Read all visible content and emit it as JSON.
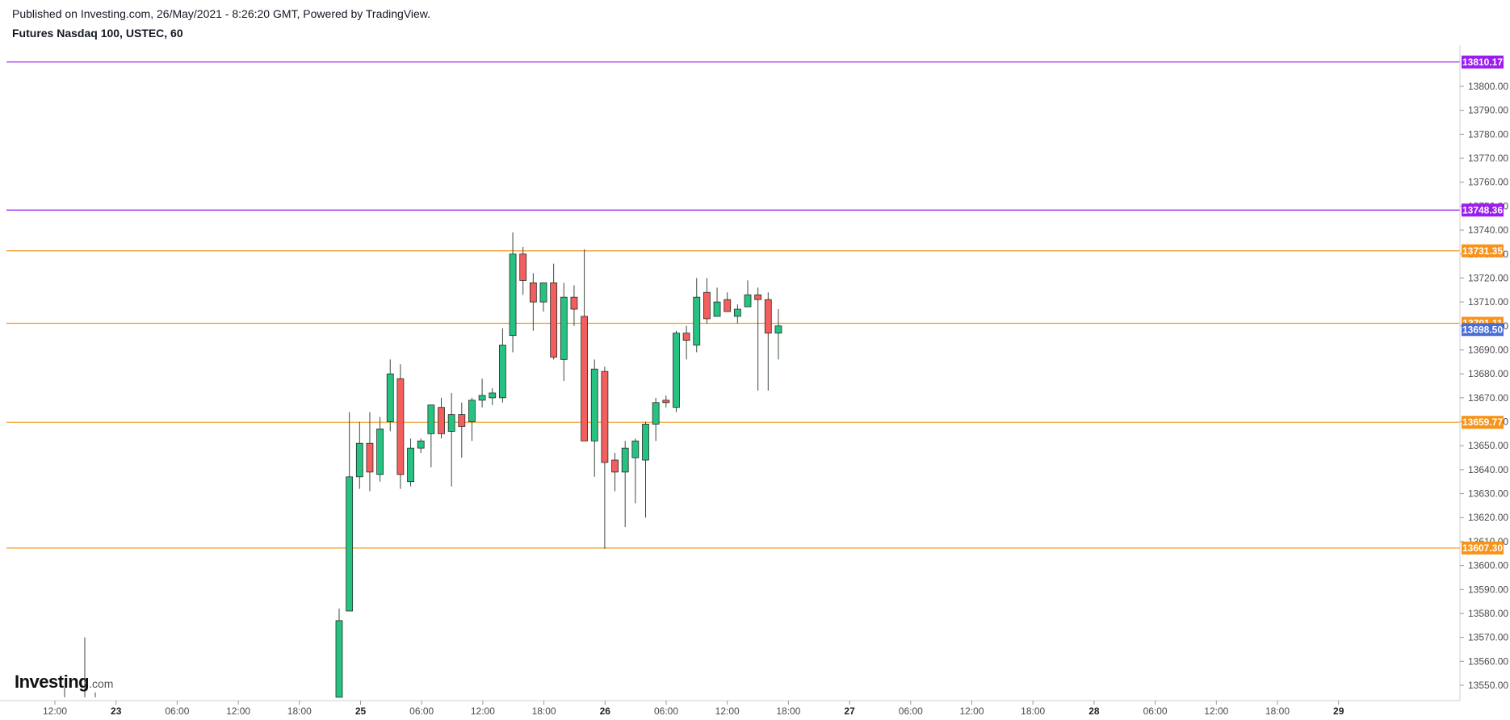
{
  "header": {
    "published": "Published on Investing.com, 26/May/2021 - 8:26:20 GMT, Powered by TradingView.",
    "symbol": "Futures Nasdaq 100, USTEC, 60"
  },
  "logo": {
    "brand": "Investing",
    "suffix": ".com"
  },
  "colors": {
    "up": "#26c281",
    "down": "#f25f5c",
    "wick": "#3c4a3c",
    "resistance_purple": "#9b1cf0",
    "level_orange": "#f7931a",
    "current_price": "#4a6ed4"
  },
  "chart_data": {
    "type": "candlestick",
    "title": "Futures Nasdaq 100, USTEC, 60",
    "ylim": [
      13545,
      13820
    ],
    "yticks": [
      13550,
      13560,
      13570,
      13580,
      13590,
      13600,
      13610,
      13620,
      13630,
      13640,
      13650,
      13660,
      13670,
      13680,
      13690,
      13700,
      13710,
      13720,
      13730,
      13740,
      13750,
      13760,
      13770,
      13780,
      13790,
      13800
    ],
    "xticks": [
      {
        "label": "12:00",
        "day": false
      },
      {
        "label": "23",
        "day": true
      },
      {
        "label": "06:00",
        "day": false
      },
      {
        "label": "12:00",
        "day": false
      },
      {
        "label": "18:00",
        "day": false
      },
      {
        "label": "25",
        "day": true
      },
      {
        "label": "06:00",
        "day": false
      },
      {
        "label": "12:00",
        "day": false
      },
      {
        "label": "18:00",
        "day": false
      },
      {
        "label": "26",
        "day": true
      },
      {
        "label": "06:00",
        "day": false
      },
      {
        "label": "12:00",
        "day": false
      },
      {
        "label": "18:00",
        "day": false
      },
      {
        "label": "27",
        "day": true
      },
      {
        "label": "06:00",
        "day": false
      },
      {
        "label": "12:00",
        "day": false
      },
      {
        "label": "18:00",
        "day": false
      },
      {
        "label": "28",
        "day": true
      },
      {
        "label": "06:00",
        "day": false
      },
      {
        "label": "12:00",
        "day": false
      },
      {
        "label": "18:00",
        "day": false
      },
      {
        "label": "29",
        "day": true
      }
    ],
    "levels": [
      {
        "label": "13810.17",
        "value": 13810.17,
        "kind": "resistance_purple"
      },
      {
        "label": "13748.36",
        "value": 13748.36,
        "kind": "resistance_purple"
      },
      {
        "label": "13731.35",
        "value": 13731.35,
        "kind": "level_orange"
      },
      {
        "label": "13701.11",
        "value": 13701.11,
        "kind": "level_orange"
      },
      {
        "label": "13659.77",
        "value": 13659.77,
        "kind": "level_orange"
      },
      {
        "label": "13607.30",
        "value": 13607.3,
        "kind": "level_orange"
      }
    ],
    "current_price": {
      "label": "13698.50",
      "value": 13698.5
    },
    "candles": [
      {
        "o": 13545,
        "h": 13582,
        "l": 13545,
        "c": 13577
      },
      {
        "o": 13581,
        "h": 13664,
        "l": 13581,
        "c": 13637
      },
      {
        "o": 13637,
        "h": 13660,
        "l": 13632,
        "c": 13651
      },
      {
        "o": 13651,
        "h": 13664,
        "l": 13631,
        "c": 13639
      },
      {
        "o": 13638,
        "h": 13662,
        "l": 13635,
        "c": 13657
      },
      {
        "o": 13660,
        "h": 13686,
        "l": 13656,
        "c": 13680
      },
      {
        "o": 13678,
        "h": 13684,
        "l": 13632,
        "c": 13638
      },
      {
        "o": 13635,
        "h": 13653,
        "l": 13633,
        "c": 13649
      },
      {
        "o": 13649,
        "h": 13653,
        "l": 13647,
        "c": 13652
      },
      {
        "o": 13655,
        "h": 13667,
        "l": 13641,
        "c": 13667
      },
      {
        "o": 13666,
        "h": 13670,
        "l": 13653,
        "c": 13655
      },
      {
        "o": 13656,
        "h": 13672,
        "l": 13633,
        "c": 13663
      },
      {
        "o": 13663,
        "h": 13668,
        "l": 13645,
        "c": 13658
      },
      {
        "o": 13660,
        "h": 13670,
        "l": 13652,
        "c": 13669
      },
      {
        "o": 13669,
        "h": 13678,
        "l": 13666,
        "c": 13671
      },
      {
        "o": 13670,
        "h": 13674,
        "l": 13667,
        "c": 13672
      },
      {
        "o": 13670,
        "h": 13699,
        "l": 13668,
        "c": 13692
      },
      {
        "o": 13696,
        "h": 13739,
        "l": 13689,
        "c": 13730
      },
      {
        "o": 13730,
        "h": 13733,
        "l": 13713,
        "c": 13719
      },
      {
        "o": 13718,
        "h": 13722,
        "l": 13698,
        "c": 13710
      },
      {
        "o": 13710,
        "h": 13718,
        "l": 13706,
        "c": 13718
      },
      {
        "o": 13718,
        "h": 13726,
        "l": 13686,
        "c": 13687
      },
      {
        "o": 13686,
        "h": 13718,
        "l": 13677,
        "c": 13712
      },
      {
        "o": 13712,
        "h": 13717,
        "l": 13700,
        "c": 13707
      },
      {
        "o": 13704,
        "h": 13732,
        "l": 13652,
        "c": 13652
      },
      {
        "o": 13652,
        "h": 13686,
        "l": 13637,
        "c": 13682
      },
      {
        "o": 13681,
        "h": 13683,
        "l": 13607,
        "c": 13643
      },
      {
        "o": 13644,
        "h": 13647,
        "l": 13631,
        "c": 13639
      },
      {
        "o": 13639,
        "h": 13652,
        "l": 13616,
        "c": 13649
      },
      {
        "o": 13645,
        "h": 13653,
        "l": 13626,
        "c": 13652
      },
      {
        "o": 13644,
        "h": 13660,
        "l": 13620,
        "c": 13659
      },
      {
        "o": 13659,
        "h": 13670,
        "l": 13652,
        "c": 13668
      },
      {
        "o": 13669,
        "h": 13671,
        "l": 13666,
        "c": 13668
      },
      {
        "o": 13666,
        "h": 13698,
        "l": 13664,
        "c": 13697
      },
      {
        "o": 13697,
        "h": 13700,
        "l": 13686,
        "c": 13694
      },
      {
        "o": 13692,
        "h": 13720,
        "l": 13689,
        "c": 13712
      },
      {
        "o": 13714,
        "h": 13720,
        "l": 13701,
        "c": 13703
      },
      {
        "o": 13704,
        "h": 13716,
        "l": 13704,
        "c": 13710
      },
      {
        "o": 13711,
        "h": 13714,
        "l": 13706,
        "c": 13706
      },
      {
        "o": 13704,
        "h": 13709,
        "l": 13701,
        "c": 13707
      },
      {
        "o": 13708,
        "h": 13719,
        "l": 13708,
        "c": 13713
      },
      {
        "o": 13713,
        "h": 13716,
        "l": 13673,
        "c": 13711
      },
      {
        "o": 13711,
        "h": 13714,
        "l": 13673,
        "c": 13697
      },
      {
        "o": 13697,
        "h": 13707,
        "l": 13686,
        "c": 13700
      }
    ],
    "early_bars": [
      {
        "h": 13549,
        "l": 13545
      },
      {
        "h": 13570,
        "l": 13545
      },
      {
        "h": 13547,
        "l": 13545
      }
    ]
  }
}
